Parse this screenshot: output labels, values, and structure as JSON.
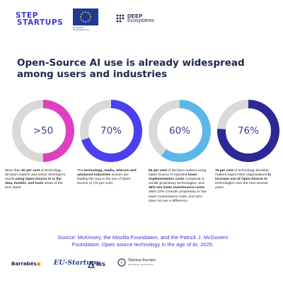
{
  "header": {
    "startups_logo_line1": "STEP",
    "startups_logo_line2": "STARTUPS",
    "eu_caption_line1": "Co-funded by",
    "eu_caption_line2": "the European Union",
    "deep_line1": "DEEP",
    "deep_line2": "Ecosystems"
  },
  "title": "Open-Source AI use is already widespread among users and industries",
  "colors": {
    "track": "#d9d9d9",
    "donut1": "#e040bf",
    "donut2": "#4b3ff0",
    "donut3": "#5cb6e8",
    "donut4": "#2c2896",
    "label1": "#3b3b9c",
    "label2": "#3b3b9c",
    "label3": "#3b3b9c",
    "label4": "#3b3b9c"
  },
  "chart_data": {
    "type": "donut",
    "items": [
      {
        "label": ">50",
        "value": 50,
        "color": "#e040bf",
        "desc_parts": [
          {
            "t": "More than ",
            "b": false
          },
          {
            "t": "50 per cent",
            "b": true
          },
          {
            "t": " of technology decision-makers and senior developers report ",
            "b": false
          },
          {
            "t": "using Open-Source AI in the data, models, and tools",
            "b": true
          },
          {
            "t": " areas of the tech stack.",
            "b": false
          }
        ]
      },
      {
        "label": "70%",
        "value": 70,
        "color": "#4b3ff0",
        "desc_parts": [
          {
            "t": "The ",
            "b": false
          },
          {
            "t": "technology, media, telecom and advanced industries",
            "b": true
          },
          {
            "t": " sectors are leading the way in the use of Open-Source AI (70 per cent).",
            "b": false
          }
        ]
      },
      {
        "label": "60%",
        "value": 60,
        "color": "#5cb6e8",
        "desc_parts": [
          {
            "t": "60 per cent",
            "b": true
          },
          {
            "t": " of decision-makers using Open-Source AI reported ",
            "b": false
          },
          {
            "t": "lower implementation costs",
            "b": true
          },
          {
            "t": " compared to similar proprietary technologies, and ",
            "b": false
          },
          {
            "t": "46% see lower maintenance costs",
            "b": true
          },
          {
            "t": ", while 22% consider proprietary AI has lower maintenance costs, and 32% does not see a difference.",
            "b": false
          }
        ]
      },
      {
        "label": "76%",
        "value": 76,
        "color": "#2c2896",
        "desc_parts": [
          {
            "t": "76 per cent",
            "b": true
          },
          {
            "t": " of technology decision-makers expect their organisations ",
            "b": false
          },
          {
            "t": "to increase use of Open-Source AI",
            "b": true
          },
          {
            "t": " technologies over the next several years.",
            "b": false
          }
        ]
      }
    ]
  },
  "source": "Source: McKinsey, the Mozilla Foundation, and the Patrick J. McGovern Foundation. Open source technology in the age of AI, 2025.",
  "footer": {
    "barrabes": "Barrabés",
    "eu_startups": "EU-Startups",
    "irs": "IRS",
    "seu_line1": "Startup Europe",
    "seu_line2": "REGIONS NETWORK"
  }
}
